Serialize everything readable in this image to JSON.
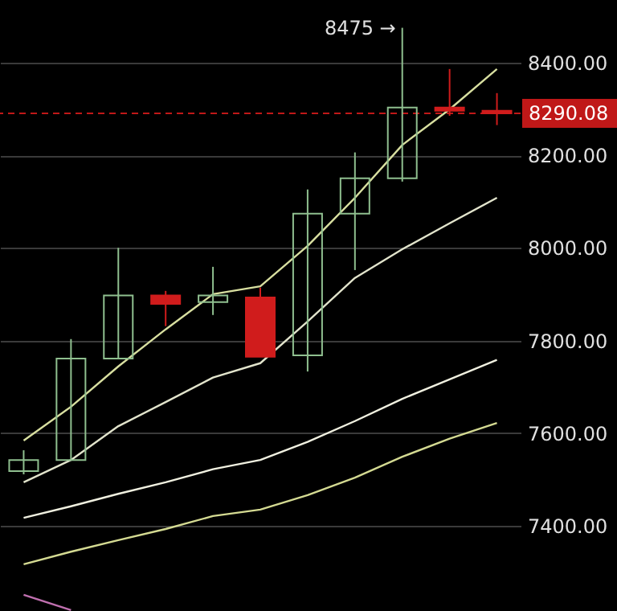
{
  "chart_data": {
    "type": "candlestick",
    "categories": [
      null,
      null,
      null,
      null,
      null,
      null,
      null,
      null,
      null,
      null,
      null
    ],
    "ohlc": [
      [
        7518,
        7563,
        7511,
        7542
      ],
      [
        7542,
        7803,
        7542,
        7761
      ],
      [
        7761,
        8000,
        7761,
        7897
      ],
      [
        7897,
        7907,
        7831,
        7879
      ],
      [
        7883,
        7959,
        7855,
        7897
      ],
      [
        7893,
        7914,
        7765,
        7765
      ],
      [
        7768,
        8126,
        7733,
        8074
      ],
      [
        8074,
        8206,
        7952,
        8150
      ],
      [
        8150,
        8475,
        8143,
        8303
      ],
      [
        8303,
        8386,
        8285,
        8296
      ],
      [
        8296,
        8334,
        8265,
        8290.08
      ]
    ],
    "colors": [
      "#8fbf8f",
      "#8fbf8f",
      "#8fbf8f",
      "#d01c1c",
      "#8fbf8f",
      "#d01c1c",
      "#8fbf8f",
      "#8fbf8f",
      "#8fbf8f",
      "#d01c1c",
      "#d01c1c"
    ],
    "series": [
      {
        "type": "line",
        "color": "#d8dfa0",
        "values": [
          7584,
          7657,
          7744,
          7824,
          7900,
          7917,
          8004,
          8108,
          8222,
          8299,
          8386
        ]
      },
      {
        "type": "line",
        "color": "#e2e4cc",
        "values": [
          7494,
          7542,
          7615,
          7667,
          7720,
          7751,
          7841,
          7935,
          7997,
          8053,
          8108
        ]
      },
      {
        "type": "line",
        "color": "#f0f0e0",
        "values": [
          7417,
          7442,
          7469,
          7494,
          7522,
          7542,
          7581,
          7626,
          7674,
          7716,
          7758
        ]
      },
      {
        "type": "line",
        "color": "#d4da92",
        "values": [
          7317,
          7344,
          7369,
          7393,
          7421,
          7435,
          7466,
          7504,
          7549,
          7588,
          7622
        ]
      },
      {
        "type": "line",
        "color": "#c070b0",
        "values": [
          7251,
          7218,
          null,
          null,
          null,
          null,
          null,
          null,
          null,
          null,
          null
        ]
      }
    ],
    "ylim": [
      7216,
      8535
    ],
    "yticks": [
      {
        "value": 7400,
        "label": "7400.00"
      },
      {
        "value": 7600,
        "label": "7600.00"
      },
      {
        "value": 7800,
        "label": "7800.00"
      },
      {
        "value": 8000,
        "label": "8000.00"
      },
      {
        "value": 8200,
        "label": "8200.00"
      },
      {
        "value": 8400,
        "label": "8400.00"
      }
    ],
    "grid": "y",
    "ref_lines": [
      {
        "axis": "y",
        "value": 8290.08,
        "label": "8290.08",
        "color": "#c01818",
        "line_style": "dashed"
      }
    ],
    "annotations": [
      "8475 →"
    ]
  }
}
